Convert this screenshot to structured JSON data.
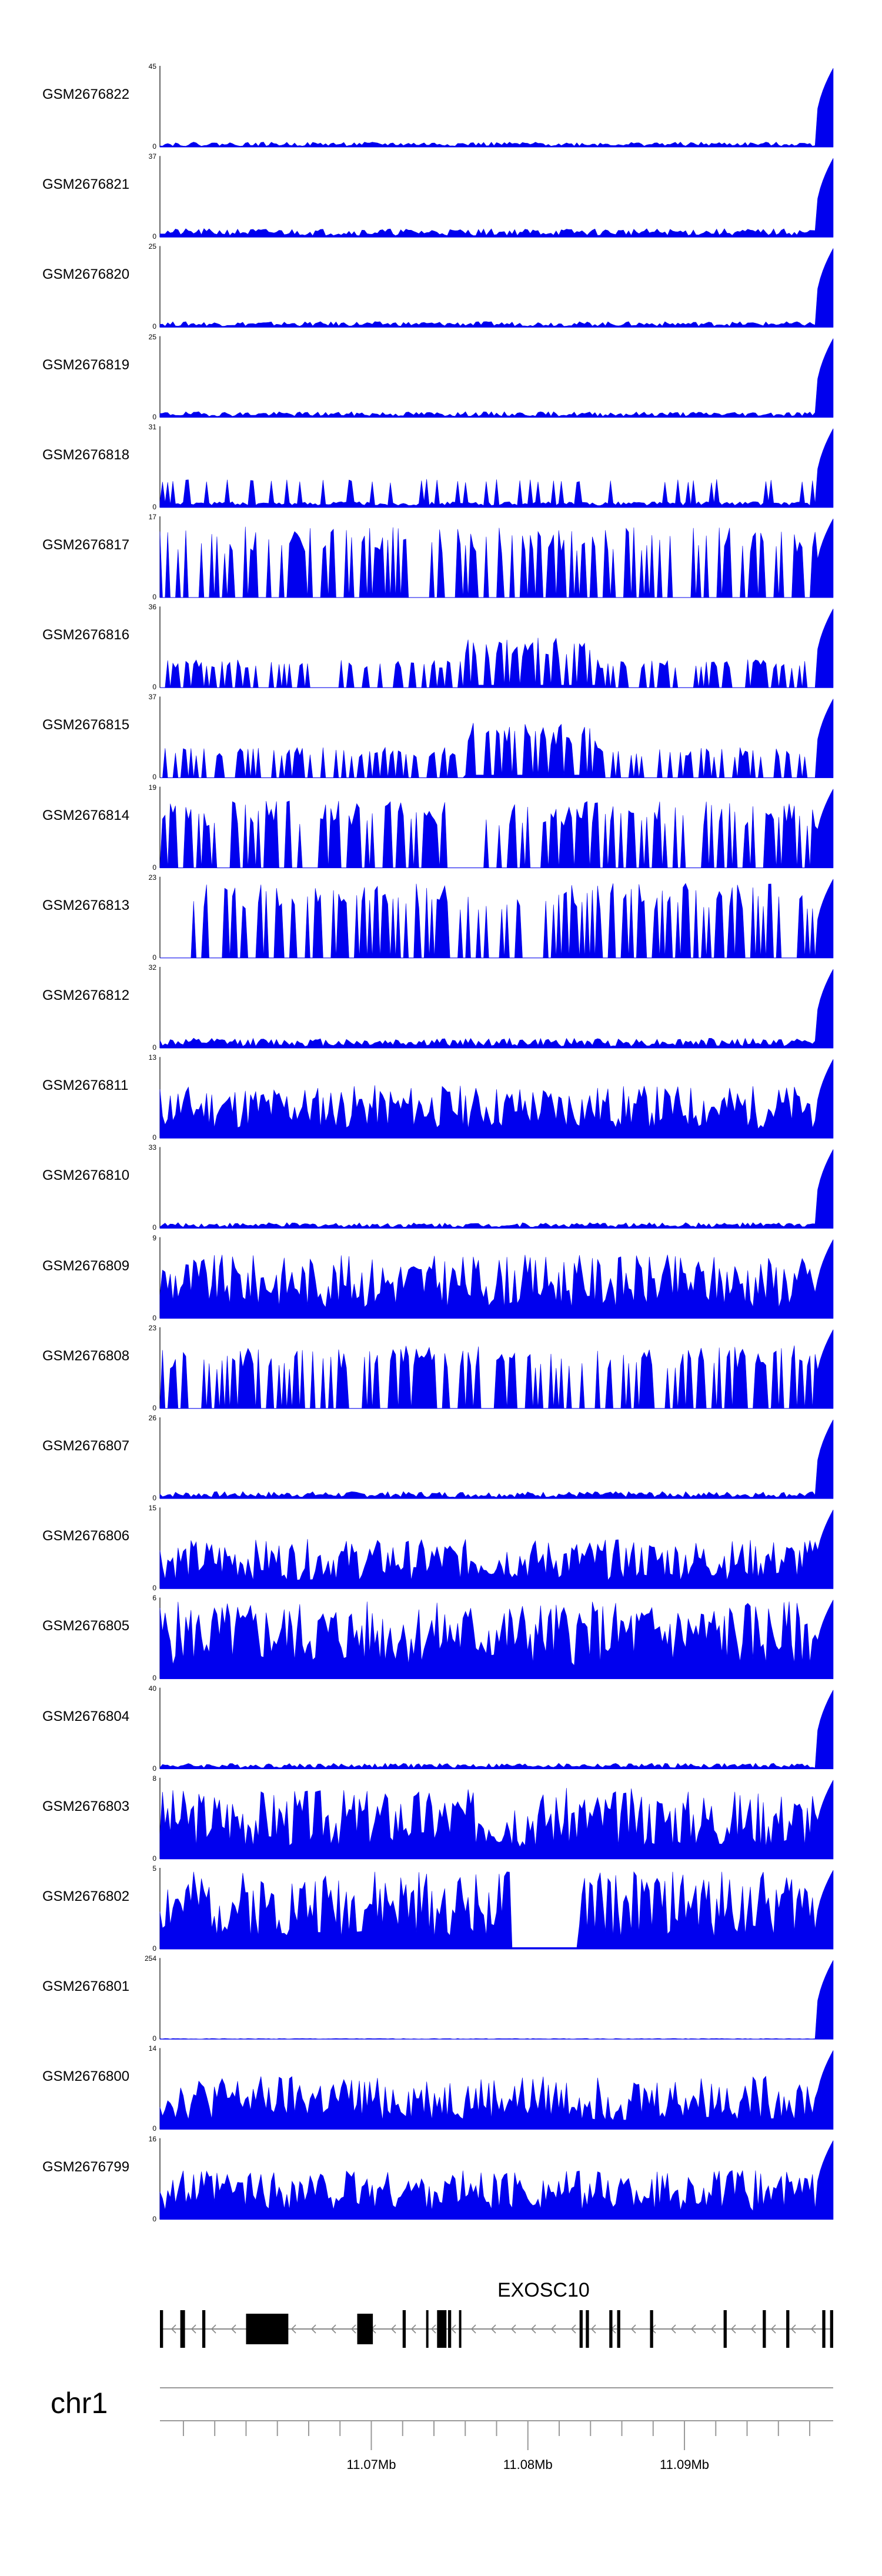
{
  "chart_data": {
    "type": "area",
    "title": "",
    "chromosome": "chr1",
    "xlim": [
      11.0565,
      11.0995
    ],
    "xunit": "Mb",
    "fill_color": "#0000ee",
    "tracks": [
      {
        "name": "GSM2676822",
        "ymax": "45",
        "ymin": "0",
        "peak": 45,
        "profile": "flat_right",
        "noise": 0.07,
        "seed": 22
      },
      {
        "name": "GSM2676821",
        "ymax": "37",
        "ymin": "0",
        "peak": 37,
        "profile": "flat_right",
        "noise": 0.12,
        "seed": 21
      },
      {
        "name": "GSM2676820",
        "ymax": "25",
        "ymin": "0",
        "peak": 25,
        "profile": "flat_right",
        "noise": 0.08,
        "seed": 20
      },
      {
        "name": "GSM2676819",
        "ymax": "25",
        "ymin": "0",
        "peak": 25,
        "profile": "flat_right",
        "noise": 0.08,
        "seed": 19
      },
      {
        "name": "GSM2676818",
        "ymax": "31",
        "ymin": "0",
        "peak": 31,
        "profile": "spiky_right",
        "noise": 0.25,
        "seed": 18
      },
      {
        "name": "GSM2676817",
        "ymax": "17",
        "ymin": "0",
        "peak": 17,
        "profile": "sparse",
        "noise": 0.55,
        "seed": 17
      },
      {
        "name": "GSM2676816",
        "ymax": "36",
        "ymin": "0",
        "peak": 36,
        "profile": "sparse_mid",
        "noise": 0.3,
        "seed": 16
      },
      {
        "name": "GSM2676815",
        "ymax": "37",
        "ymin": "0",
        "peak": 37,
        "profile": "sparse_mid",
        "noise": 0.35,
        "seed": 15
      },
      {
        "name": "GSM2676814",
        "ymax": "19",
        "ymin": "0",
        "peak": 19,
        "profile": "sparse",
        "noise": 0.5,
        "seed": 14
      },
      {
        "name": "GSM2676813",
        "ymax": "23",
        "ymin": "0",
        "peak": 23,
        "profile": "sparse_gap",
        "noise": 0.6,
        "seed": 13
      },
      {
        "name": "GSM2676812",
        "ymax": "32",
        "ymin": "0",
        "peak": 32,
        "profile": "flat_right",
        "noise": 0.14,
        "seed": 12
      },
      {
        "name": "GSM2676811",
        "ymax": "13",
        "ymin": "0",
        "peak": 13,
        "profile": "dense",
        "noise": 0.4,
        "seed": 11
      },
      {
        "name": "GSM2676810",
        "ymax": "33",
        "ymin": "0",
        "peak": 33,
        "profile": "flat_right",
        "noise": 0.08,
        "seed": 10
      },
      {
        "name": "GSM2676809",
        "ymax": "9",
        "ymin": "0",
        "peak": 9,
        "profile": "dense",
        "noise": 0.55,
        "seed": 9
      },
      {
        "name": "GSM2676808",
        "ymax": "23",
        "ymin": "0",
        "peak": 23,
        "profile": "sparse",
        "noise": 0.45,
        "seed": 8
      },
      {
        "name": "GSM2676807",
        "ymax": "26",
        "ymin": "0",
        "peak": 26,
        "profile": "flat_right",
        "noise": 0.1,
        "seed": 7
      },
      {
        "name": "GSM2676806",
        "ymax": "15",
        "ymin": "0",
        "peak": 15,
        "profile": "dense",
        "noise": 0.35,
        "seed": 6
      },
      {
        "name": "GSM2676805",
        "ymax": "6",
        "ymin": "0",
        "peak": 6,
        "profile": "dense",
        "noise": 0.75,
        "seed": 5
      },
      {
        "name": "GSM2676804",
        "ymax": "40",
        "ymin": "0",
        "peak": 40,
        "profile": "flat_right",
        "noise": 0.08,
        "seed": 4
      },
      {
        "name": "GSM2676803",
        "ymax": "8",
        "ymin": "0",
        "peak": 8,
        "profile": "dense",
        "noise": 0.65,
        "seed": 3
      },
      {
        "name": "GSM2676802",
        "ymax": "5",
        "ymin": "0",
        "peak": 5,
        "profile": "dense_gap",
        "noise": 0.65,
        "seed": 2
      },
      {
        "name": "GSM2676801",
        "ymax": "254",
        "ymin": "0",
        "peak": 254,
        "profile": "flat_right",
        "noise": 0.01,
        "seed": 1
      },
      {
        "name": "GSM2676800",
        "ymax": "14",
        "ymin": "0",
        "peak": 14,
        "profile": "dense",
        "noise": 0.4,
        "seed": 100
      },
      {
        "name": "GSM2676799",
        "ymax": "16",
        "ymin": "0",
        "peak": 16,
        "profile": "dense",
        "noise": 0.35,
        "seed": 99
      }
    ],
    "gene": {
      "name": "EXOSC10",
      "strand": "-",
      "start": 11.0565,
      "end": 11.0995,
      "exons": [
        [
          11.0565,
          11.0567
        ],
        [
          11.0578,
          11.0581
        ],
        [
          11.0592,
          11.0594
        ],
        [
          11.062,
          11.0647
        ],
        [
          11.0691,
          11.0701
        ],
        [
          11.072,
          11.0722
        ],
        [
          11.0735,
          11.0736
        ],
        [
          11.0742,
          11.0748
        ],
        [
          11.0749,
          11.0751
        ],
        [
          11.0756,
          11.0757
        ],
        [
          11.0833,
          11.0835
        ],
        [
          11.0837,
          11.0839
        ],
        [
          11.0852,
          11.0854
        ],
        [
          11.0857,
          11.0859
        ],
        [
          11.0878,
          11.088
        ],
        [
          11.0925,
          11.0927
        ],
        [
          11.095,
          11.0952
        ],
        [
          11.0965,
          11.0967
        ],
        [
          11.0988,
          11.099
        ],
        [
          11.0993,
          11.0995
        ]
      ]
    },
    "axis": {
      "major_ticks": [
        {
          "pos": 11.07,
          "label": "11.07Mb"
        },
        {
          "pos": 11.08,
          "label": "11.08Mb"
        },
        {
          "pos": 11.09,
          "label": "11.09Mb"
        }
      ],
      "minor_ticks": [
        11.058,
        11.06,
        11.062,
        11.064,
        11.066,
        11.068,
        11.072,
        11.074,
        11.076,
        11.078,
        11.082,
        11.084,
        11.086,
        11.088,
        11.092,
        11.094,
        11.096,
        11.098
      ]
    }
  }
}
